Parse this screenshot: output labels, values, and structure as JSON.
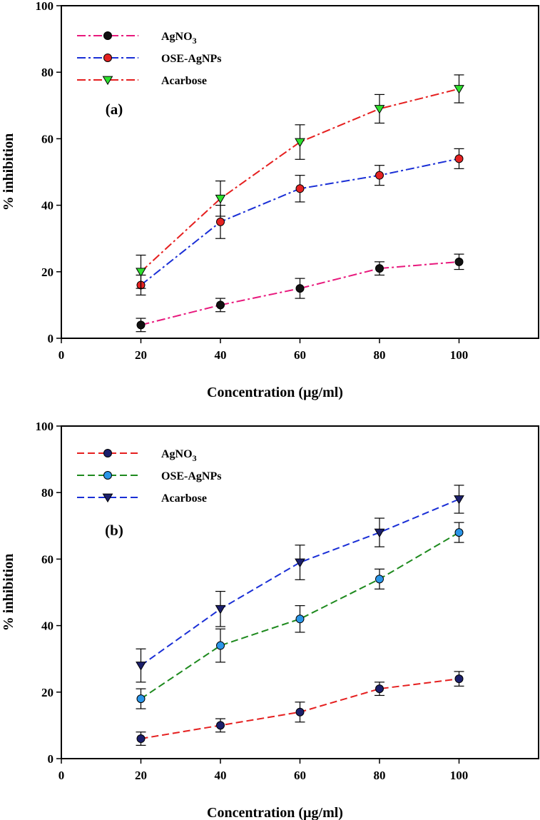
{
  "chart_data": [
    {
      "type": "line",
      "panel_label": "(a)",
      "xlabel": "Concentration (µg/ml)",
      "ylabel": "% inhibition",
      "xlim": [
        0,
        120
      ],
      "ylim": [
        0,
        100
      ],
      "xticks": [
        0,
        20,
        40,
        60,
        80,
        100
      ],
      "yticks": [
        0,
        20,
        40,
        60,
        80,
        100
      ],
      "legend_position": "top-left",
      "grid": false,
      "x": [
        20,
        40,
        60,
        80,
        100
      ],
      "series": [
        {
          "name": "AgNO",
          "name_sub": "3",
          "values": [
            4,
            10,
            15,
            21,
            23
          ],
          "errors": [
            2,
            2,
            3,
            2,
            2.3
          ],
          "line_color": "#e8197d",
          "dash": "dashdot",
          "marker": "circle",
          "marker_fill": "#111111"
        },
        {
          "name": "OSE-AgNPs",
          "name_sub": "",
          "values": [
            16,
            35,
            45,
            49,
            54
          ],
          "errors": [
            3,
            5,
            4,
            3,
            3
          ],
          "line_color": "#1a2fd6",
          "dash": "dashdot",
          "marker": "circle",
          "marker_fill": "#e52222"
        },
        {
          "name": "Acarbose",
          "name_sub": "",
          "values": [
            20,
            42,
            59,
            69,
            75
          ],
          "errors": [
            5,
            5.3,
            5.2,
            4.3,
            4.2
          ],
          "line_color": "#e51f1f",
          "dash": "dashdot",
          "marker": "triangle-down",
          "marker_fill": "#2ee02e"
        }
      ]
    },
    {
      "type": "line",
      "panel_label": "(b)",
      "xlabel": "Concentration (µg/ml)",
      "ylabel": "% inhibition",
      "xlim": [
        0,
        120
      ],
      "ylim": [
        0,
        100
      ],
      "xticks": [
        0,
        20,
        40,
        60,
        80,
        100
      ],
      "yticks": [
        0,
        20,
        40,
        60,
        80,
        100
      ],
      "legend_position": "top-left",
      "grid": false,
      "x": [
        20,
        40,
        60,
        80,
        100
      ],
      "series": [
        {
          "name": "AgNO",
          "name_sub": "3",
          "values": [
            6,
            10,
            14,
            21,
            24
          ],
          "errors": [
            2,
            2,
            3,
            2,
            2.2
          ],
          "line_color": "#e51f1f",
          "dash": "dashed",
          "marker": "circle",
          "marker_fill": "#1b1f6b"
        },
        {
          "name": "OSE-AgNPs",
          "name_sub": "",
          "values": [
            18,
            34,
            42,
            54,
            68
          ],
          "errors": [
            3,
            5,
            4,
            3,
            3
          ],
          "line_color": "#1e8a1e",
          "dash": "dashed",
          "marker": "circle",
          "marker_fill": "#2a95e8"
        },
        {
          "name": "Acarbose",
          "name_sub": "",
          "values": [
            28,
            45,
            59,
            68,
            78
          ],
          "errors": [
            5,
            5.3,
            5.2,
            4.3,
            4.2
          ],
          "line_color": "#1a2fd6",
          "dash": "dashed",
          "marker": "triangle-down",
          "marker_fill": "#1b1f6b"
        }
      ]
    }
  ]
}
